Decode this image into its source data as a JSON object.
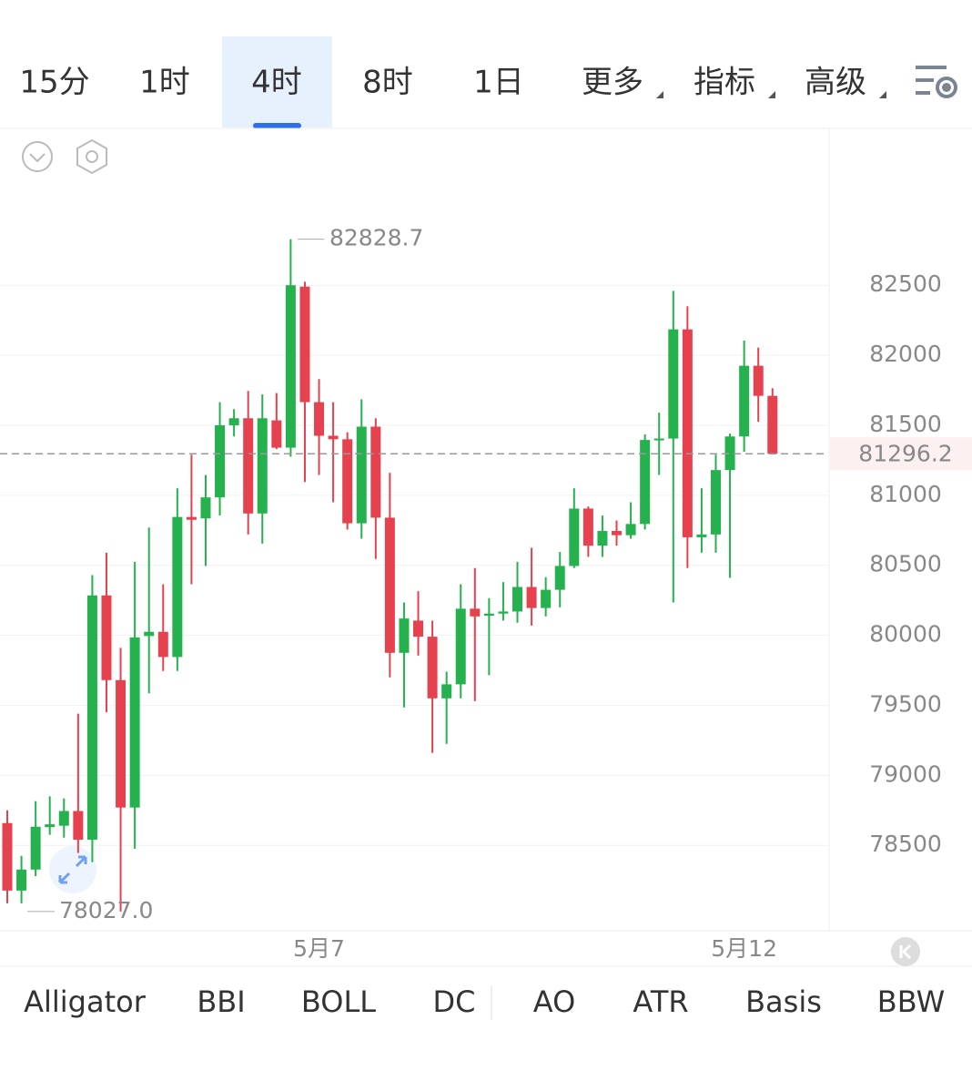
{
  "tabs": [
    "15分",
    "1时",
    "4时",
    "8时",
    "1日",
    "更多",
    "指标",
    "高级"
  ],
  "selected_tab": 2,
  "chart_data": {
    "type": "candlestick",
    "categories": [
      null,
      null,
      null,
      null,
      null,
      null,
      null,
      null,
      null,
      null,
      null,
      null,
      null,
      null,
      null,
      null,
      null,
      null,
      null,
      null,
      null,
      null,
      "5月7",
      null,
      null,
      null,
      null,
      null,
      null,
      null,
      null,
      null,
      null,
      null,
      null,
      null,
      null,
      null,
      null,
      null,
      null,
      null,
      null,
      null,
      null,
      null,
      null,
      null,
      null,
      null,
      null,
      null,
      "5月12",
      null,
      null
    ],
    "open": [
      78659,
      78177,
      78327,
      78630,
      78640,
      78745,
      78540,
      80285,
      79680,
      78770,
      79995,
      80025,
      79845,
      80845,
      80835,
      80985,
      81500,
      81550,
      80870,
      81535,
      81340,
      82490,
      81665,
      81425,
      81400,
      80800,
      81490,
      80840,
      79875,
      80105,
      79990,
      79550,
      79650,
      80190,
      80140,
      80155,
      80170,
      80345,
      80195,
      80325,
      80495,
      80905,
      80640,
      80745,
      80715,
      80795,
      81395,
      81405,
      82185,
      80700,
      80720,
      81180,
      81420,
      81925,
      81710
    ],
    "high": [
      78750,
      78425,
      78815,
      78850,
      78835,
      79440,
      80430,
      80590,
      79910,
      80525,
      80770,
      80365,
      81050,
      81290,
      81145,
      81665,
      81615,
      81745,
      81720,
      81730,
      82828.7,
      82525,
      81830,
      81665,
      81450,
      81685,
      81550,
      81160,
      80235,
      80315,
      80105,
      79740,
      80365,
      80480,
      80265,
      80380,
      80525,
      80625,
      80415,
      80595,
      81050,
      80920,
      80855,
      80820,
      80950,
      81435,
      81590,
      82460,
      82350,
      81050,
      81290,
      81440,
      82105,
      82055,
      81765
    ],
    "low": [
      78086,
      78086,
      78280,
      78575,
      78555,
      78445,
      78380,
      79450,
      78027,
      78475,
      79585,
      79745,
      79745,
      80365,
      80495,
      80855,
      81420,
      80720,
      80655,
      81330,
      81275,
      81095,
      81145,
      80950,
      80755,
      80690,
      80545,
      79700,
      79485,
      79855,
      79160,
      79225,
      79550,
      79530,
      79715,
      80105,
      80090,
      80070,
      80135,
      80200,
      80480,
      80560,
      80560,
      80640,
      80690,
      80755,
      81145,
      80235,
      80480,
      80590,
      80590,
      80410,
      81310,
      81525,
      81296.2
    ],
    "close": [
      78177,
      78327,
      78633,
      78650,
      78745,
      78540,
      80285,
      79680,
      78770,
      79985,
      80025,
      79845,
      80845,
      80825,
      80985,
      81500,
      81550,
      80870,
      81550,
      81340,
      82500,
      81665,
      81425,
      81400,
      80800,
      81490,
      80840,
      79875,
      80120,
      79990,
      79550,
      79650,
      80190,
      80135,
      80155,
      80170,
      80345,
      80195,
      80325,
      80495,
      80905,
      80640,
      80745,
      80715,
      80795,
      81395,
      81405,
      82185,
      80700,
      80720,
      81180,
      81420,
      81925,
      81710,
      81296.2
    ],
    "up_color": "#26b14f",
    "down_color": "#e5414f",
    "ylim": [
      77890,
      83620
    ],
    "yticks": [
      78500,
      79000,
      79500,
      80000,
      80500,
      81000,
      81500,
      82000,
      82500
    ],
    "grid": true,
    "max_label": 82828.7,
    "min_label": {
      "value": 78027,
      "label": "78027.0"
    },
    "last_price": 81296.2
  },
  "indicators": [
    "Alligator",
    "BBI",
    "BOLL",
    "DC",
    "AO",
    "ATR",
    "Basis",
    "BBW"
  ]
}
